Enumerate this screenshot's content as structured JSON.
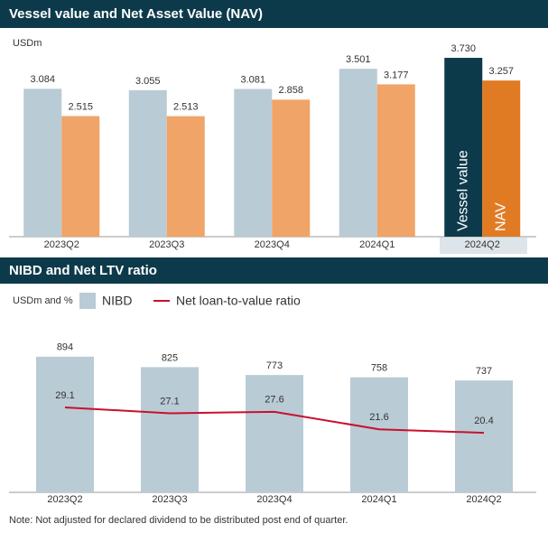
{
  "chart_data": [
    {
      "type": "bar",
      "title": "Vessel value and Net Asset Value (NAV)",
      "y_label": "USDm",
      "categories": [
        "2023Q2",
        "2023Q3",
        "2023Q4",
        "2024Q1",
        "2024Q2"
      ],
      "series": [
        {
          "name": "Vessel value",
          "colors": [
            "#b9cbd5",
            "#b9cbd5",
            "#b9cbd5",
            "#b9cbd5",
            "#0d3a4a"
          ],
          "values": [
            3084,
            3055,
            3081,
            3501,
            3730
          ],
          "value_labels": [
            "3.084",
            "3.055",
            "3.081",
            "3.501",
            "3.730"
          ]
        },
        {
          "name": "NAV",
          "colors": [
            "#f0a467",
            "#f0a467",
            "#f0a467",
            "#f0a467",
            "#e07b24"
          ],
          "values": [
            2515,
            2513,
            2858,
            3177,
            3257
          ],
          "value_labels": [
            "2.515",
            "2.513",
            "2.858",
            "3.177",
            "3.257"
          ]
        }
      ],
      "ylim": [
        0,
        3900
      ]
    },
    {
      "type": "combo",
      "title": "NIBD and Net LTV ratio",
      "y_label": "USDm and %",
      "categories": [
        "2023Q2",
        "2023Q3",
        "2023Q4",
        "2024Q1",
        "2024Q2"
      ],
      "series": [
        {
          "name": "NIBD",
          "kind": "bar",
          "color": "#b9cbd5",
          "values": [
            894,
            825,
            773,
            758,
            737
          ]
        },
        {
          "name": "Net loan-to-value ratio",
          "kind": "line",
          "axis": "y2",
          "color": "#c8102e",
          "values": [
            29.1,
            27.1,
            27.6,
            21.6,
            20.4
          ]
        }
      ],
      "ylim": [
        0,
        1000
      ],
      "y2lim": [
        0,
        52
      ]
    }
  ],
  "note": "Note: Not adjusted for declared dividend to be distributed post end of quarter."
}
